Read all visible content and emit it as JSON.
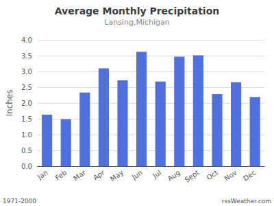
{
  "chart_data": {
    "type": "bar",
    "title": "Average Monthly Precipitation",
    "subtitle": "Lansing,Michigan",
    "ylabel": "Inches",
    "categories": [
      "Jan",
      "Feb",
      "Mar",
      "Apr",
      "May",
      "Jun",
      "Jul",
      "Aug",
      "Sept",
      "Oct",
      "Nov",
      "Dec"
    ],
    "values": [
      1.63,
      1.49,
      2.33,
      3.1,
      2.72,
      3.62,
      2.68,
      3.47,
      3.51,
      2.28,
      2.66,
      2.19
    ],
    "ylim": [
      0.0,
      4.0
    ],
    "yticks": [
      {
        "value": 0,
        "label": "0.0"
      },
      0.5,
      {
        "value": 1,
        "label": "1.0"
      },
      1.5,
      {
        "value": 2,
        "label": "2.0"
      },
      2.5,
      {
        "value": 3,
        "label": "3.0"
      },
      3.5,
      {
        "value": 4,
        "label": "4.0"
      }
    ],
    "grid": true,
    "annotations": [
      "1971-2000",
      "rssWeather.com"
    ]
  }
}
